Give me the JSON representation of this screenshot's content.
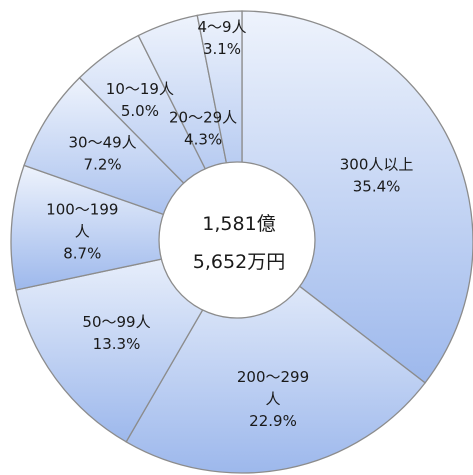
{
  "chart_data": {
    "type": "pie",
    "variant": "donut",
    "title": "",
    "center_text": [
      "1,581億",
      "5,652万円"
    ],
    "slices": [
      {
        "label": "300人以上",
        "value": 35.4,
        "value_text": "35.4%"
      },
      {
        "label": "200〜299人",
        "value": 22.9,
        "value_text": "22.9%"
      },
      {
        "label": "50〜99人",
        "value": 13.3,
        "value_text": "13.3%"
      },
      {
        "label": "100〜199人",
        "value": 8.7,
        "value_text": "8.7%"
      },
      {
        "label": "30〜49人",
        "value": 7.2,
        "value_text": "7.2%"
      },
      {
        "label": "10〜19人",
        "value": 5.0,
        "value_text": "5.0%"
      },
      {
        "label": "20〜29人",
        "value": 4.3,
        "value_text": "4.3%"
      },
      {
        "label": "4〜9人",
        "value": 3.1,
        "value_text": "3.1%"
      }
    ],
    "colors": {
      "fill_light": "#eef3fc",
      "fill_dark": "#9db8ec",
      "stroke": "#8c8c8c",
      "center_fill": "#ffffff"
    },
    "legend": "none"
  }
}
